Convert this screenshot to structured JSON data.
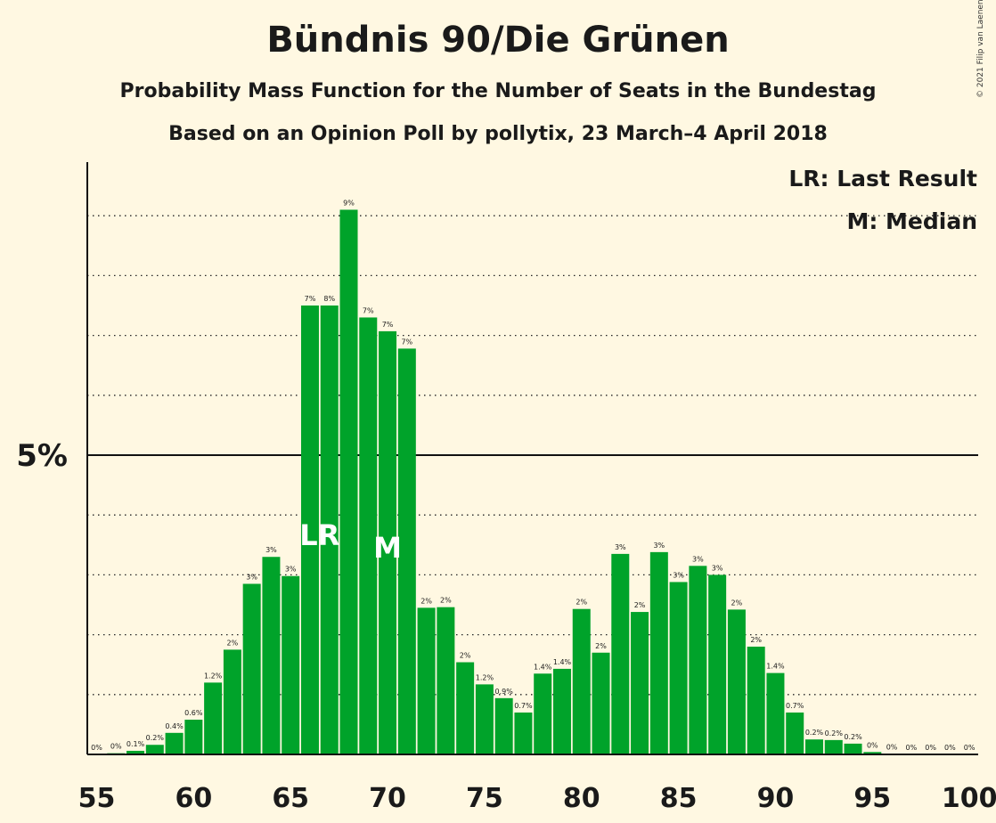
{
  "title": "Bündnis 90/Die Grünen",
  "subtitle": "Probability Mass Function for the Number of Seats in the Bundestag",
  "subtitle2": "Based on an Opinion Poll by pollytix, 23 March–4 April 2018",
  "copyright": "© 2021 Filip van Laenen",
  "legend": {
    "lr": "LR: Last Result",
    "m": "M: Median"
  },
  "colors": {
    "bar": "#00a32a",
    "background": "#fff8e2",
    "text": "#1a1a1a"
  },
  "chart_data": {
    "type": "bar",
    "x": [
      55,
      56,
      57,
      58,
      59,
      60,
      61,
      62,
      63,
      64,
      65,
      66,
      67,
      68,
      69,
      70,
      71,
      72,
      73,
      74,
      75,
      76,
      77,
      78,
      79,
      80,
      81,
      82,
      83,
      84,
      85,
      86,
      87,
      88,
      89,
      90,
      91,
      92,
      93,
      94,
      95,
      96,
      97,
      98,
      99,
      100
    ],
    "values": [
      0,
      0.02,
      0.06,
      0.16,
      0.36,
      0.58,
      1.2,
      1.75,
      2.85,
      3.3,
      2.98,
      7.5,
      7.5,
      9.1,
      7.3,
      7.07,
      6.78,
      2.45,
      2.46,
      1.54,
      1.17,
      0.94,
      0.7,
      1.35,
      1.43,
      2.43,
      1.7,
      3.35,
      2.38,
      3.38,
      2.88,
      3.15,
      3.0,
      2.42,
      1.8,
      1.36,
      0.7,
      0.25,
      0.24,
      0.18,
      0.04,
      0.01,
      0,
      0,
      0,
      0
    ],
    "labels": [
      "0%",
      "0%",
      "0.1%",
      "0.2%",
      "0.4%",
      "0.6%",
      "1.2%",
      "2%",
      "3%",
      "3%",
      "3%",
      "7%",
      "8%",
      "9%",
      "7%",
      "7%",
      "7%",
      "2%",
      "2%",
      "2%",
      "1.2%",
      "0.9%",
      "0.7%",
      "1.4%",
      "1.4%",
      "2%",
      "2%",
      "3%",
      "2%",
      "3%",
      "3%",
      "3%",
      "3%",
      "2%",
      "2%",
      "1.4%",
      "0.7%",
      "0.2%",
      "0.2%",
      "0.2%",
      "0%",
      "0%",
      "0%",
      "0%",
      "0%",
      "0%"
    ],
    "x_ticks": [
      55,
      60,
      65,
      70,
      75,
      80,
      85,
      90,
      95,
      100
    ],
    "y_tick_label": "5%",
    "y_tick_value": 5,
    "ylim": [
      0,
      9.9
    ],
    "gridlines": [
      1,
      2,
      3,
      4,
      5,
      6,
      7,
      8,
      9
    ],
    "last_result": {
      "x": 67,
      "label": "LR"
    },
    "median": {
      "x": 70,
      "label": "M"
    },
    "legend_position": "top-right"
  }
}
